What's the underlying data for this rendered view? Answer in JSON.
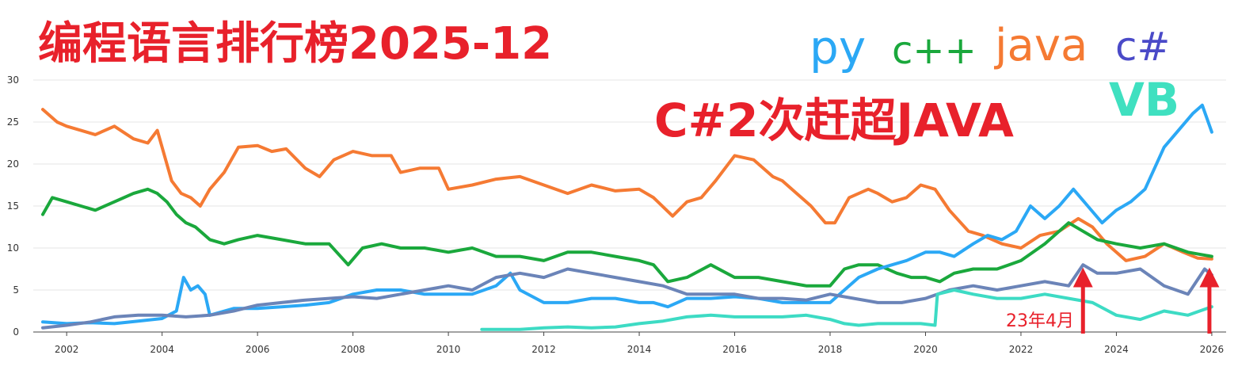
{
  "header": {
    "title": "编程语言排行榜2025-12",
    "headline": "C#2次赶超JAVA",
    "marker_label": "23年4月"
  },
  "legend": [
    {
      "label": "py",
      "color": "#2ba8f5"
    },
    {
      "label": "c++",
      "color": "#1aa83c"
    },
    {
      "label": "java",
      "color": "#f57a33"
    },
    {
      "label": "c#",
      "color": "#4a4ac8"
    },
    {
      "label": "VB",
      "color": "#3fe0c0"
    }
  ],
  "colors": {
    "title": "#e8212b",
    "arrow": "#e8212b",
    "grid": "#e6e6e6",
    "axis": "#444444"
  },
  "chart_data": {
    "type": "line",
    "xlim": [
      2001.3,
      2026.3
    ],
    "ylim": [
      0,
      30
    ],
    "y_ticks": [
      0,
      5,
      10,
      15,
      20,
      25,
      30
    ],
    "x_ticks": [
      2002,
      2004,
      2006,
      2008,
      2010,
      2012,
      2014,
      2016,
      2018,
      2020,
      2022,
      2024,
      2026
    ],
    "grid": true,
    "annotations": [
      {
        "text": "23年4月",
        "x": 2023.3,
        "type": "arrow"
      },
      {
        "text": "",
        "x": 2025.95,
        "type": "arrow"
      }
    ],
    "series": [
      {
        "key": "java",
        "color": "#f57a33",
        "x": [
          2001.5,
          2001.8,
          2002.0,
          2002.3,
          2002.6,
          2003.0,
          2003.4,
          2003.7,
          2003.9,
          2004.2,
          2004.4,
          2004.6,
          2004.8,
          2005.0,
          2005.3,
          2005.6,
          2006.0,
          2006.3,
          2006.6,
          2007.0,
          2007.3,
          2007.6,
          2008.0,
          2008.4,
          2008.8,
          2009.0,
          2009.4,
          2009.8,
          2010.0,
          2010.5,
          2011.0,
          2011.5,
          2012.0,
          2012.5,
          2013.0,
          2013.5,
          2014.0,
          2014.3,
          2014.7,
          2015.0,
          2015.3,
          2015.6,
          2016.0,
          2016.4,
          2016.8,
          2017.0,
          2017.3,
          2017.6,
          2017.9,
          2018.1,
          2018.4,
          2018.8,
          2019.0,
          2019.3,
          2019.6,
          2019.9,
          2020.2,
          2020.5,
          2020.9,
          2021.2,
          2021.6,
          2022.0,
          2022.4,
          2022.8,
          2023.2,
          2023.5,
          2023.8,
          2024.2,
          2024.6,
          2025.0,
          2025.4,
          2025.7,
          2026.0
        ],
        "y": [
          26.5,
          25.0,
          24.5,
          24.0,
          23.5,
          24.5,
          23.0,
          22.5,
          24.0,
          18.0,
          16.5,
          16.0,
          15.0,
          17.0,
          19.0,
          22.0,
          22.2,
          21.5,
          21.8,
          19.5,
          18.5,
          20.5,
          21.5,
          21.0,
          21.0,
          19.0,
          19.5,
          19.5,
          17.0,
          17.5,
          18.2,
          18.5,
          17.5,
          16.5,
          17.5,
          16.8,
          17.0,
          16.0,
          13.8,
          15.5,
          16.0,
          18.0,
          21.0,
          20.5,
          18.5,
          18.0,
          16.5,
          15.0,
          13.0,
          13.0,
          16.0,
          17.0,
          16.5,
          15.5,
          16.0,
          17.5,
          17.0,
          14.5,
          12.0,
          11.5,
          10.5,
          10.0,
          11.5,
          12.0,
          13.5,
          12.5,
          10.5,
          8.5,
          9.0,
          10.5,
          9.5,
          8.8,
          8.7
        ]
      },
      {
        "key": "c++",
        "color": "#1aa83c",
        "x": [
          2001.5,
          2001.7,
          2002.0,
          2002.3,
          2002.6,
          2003.0,
          2003.4,
          2003.7,
          2003.9,
          2004.1,
          2004.3,
          2004.5,
          2004.7,
          2005.0,
          2005.3,
          2005.6,
          2006.0,
          2006.5,
          2007.0,
          2007.5,
          2007.9,
          2008.2,
          2008.6,
          2009.0,
          2009.5,
          2010.0,
          2010.5,
          2011.0,
          2011.5,
          2012.0,
          2012.5,
          2013.0,
          2013.5,
          2014.0,
          2014.3,
          2014.6,
          2015.0,
          2015.5,
          2016.0,
          2016.5,
          2017.0,
          2017.5,
          2018.0,
          2018.3,
          2018.6,
          2019.0,
          2019.4,
          2019.7,
          2020.0,
          2020.3,
          2020.6,
          2021.0,
          2021.5,
          2022.0,
          2022.5,
          2023.0,
          2023.3,
          2023.6,
          2024.0,
          2024.5,
          2025.0,
          2025.5,
          2026.0
        ],
        "y": [
          14.0,
          16.0,
          15.5,
          15.0,
          14.5,
          15.5,
          16.5,
          17.0,
          16.5,
          15.5,
          14.0,
          13.0,
          12.5,
          11.0,
          10.5,
          11.0,
          11.5,
          11.0,
          10.5,
          10.5,
          8.0,
          10.0,
          10.5,
          10.0,
          10.0,
          9.5,
          10.0,
          9.0,
          9.0,
          8.5,
          9.5,
          9.5,
          9.0,
          8.5,
          8.0,
          6.0,
          6.5,
          8.0,
          6.5,
          6.5,
          6.0,
          5.5,
          5.5,
          7.5,
          8.0,
          8.0,
          7.0,
          6.5,
          6.5,
          6.0,
          7.0,
          7.5,
          7.5,
          8.5,
          10.5,
          13.0,
          12.0,
          11.0,
          10.5,
          10.0,
          10.5,
          9.5,
          9.0
        ]
      },
      {
        "key": "py",
        "color": "#2ba8f5",
        "x": [
          2001.5,
          2002.0,
          2002.5,
          2003.0,
          2003.5,
          2004.0,
          2004.3,
          2004.45,
          2004.6,
          2004.75,
          2004.9,
          2005.0,
          2005.5,
          2006.0,
          2006.5,
          2007.0,
          2007.5,
          2008.0,
          2008.5,
          2009.0,
          2009.5,
          2010.0,
          2010.5,
          2011.0,
          2011.3,
          2011.5,
          2012.0,
          2012.5,
          2013.0,
          2013.5,
          2014.0,
          2014.3,
          2014.6,
          2015.0,
          2015.5,
          2016.0,
          2016.5,
          2017.0,
          2017.5,
          2018.0,
          2018.3,
          2018.6,
          2019.0,
          2019.3,
          2019.6,
          2020.0,
          2020.3,
          2020.6,
          2021.0,
          2021.3,
          2021.6,
          2021.9,
          2022.2,
          2022.5,
          2022.8,
          2023.1,
          2023.4,
          2023.7,
          2024.0,
          2024.3,
          2024.6,
          2025.0,
          2025.3,
          2025.6,
          2025.8,
          2026.0
        ],
        "y": [
          1.2,
          1.0,
          1.1,
          1.0,
          1.3,
          1.6,
          2.5,
          6.5,
          5.0,
          5.5,
          4.5,
          2.0,
          2.8,
          2.8,
          3.0,
          3.2,
          3.5,
          4.5,
          5.0,
          5.0,
          4.5,
          4.5,
          4.5,
          5.5,
          7.0,
          5.0,
          3.5,
          3.5,
          4.0,
          4.0,
          3.5,
          3.5,
          3.0,
          4.0,
          4.0,
          4.2,
          4.0,
          3.5,
          3.5,
          3.5,
          5.0,
          6.5,
          7.5,
          8.0,
          8.5,
          9.5,
          9.5,
          9.0,
          10.5,
          11.5,
          11.0,
          12.0,
          15.0,
          13.5,
          15.0,
          17.0,
          15.0,
          13.0,
          14.5,
          15.5,
          17.0,
          22.0,
          24.0,
          26.0,
          27.0,
          23.8
        ]
      },
      {
        "key": "c#",
        "color": "#6b84b8",
        "x": [
          2001.5,
          2002.0,
          2002.5,
          2003.0,
          2003.5,
          2004.0,
          2004.5,
          2005.0,
          2005.5,
          2006.0,
          2006.5,
          2007.0,
          2007.5,
          2008.0,
          2008.5,
          2009.0,
          2009.5,
          2010.0,
          2010.5,
          2011.0,
          2011.5,
          2012.0,
          2012.5,
          2013.0,
          2013.5,
          2014.0,
          2014.5,
          2015.0,
          2015.5,
          2016.0,
          2016.5,
          2017.0,
          2017.5,
          2018.0,
          2018.5,
          2019.0,
          2019.5,
          2020.0,
          2020.5,
          2021.0,
          2021.5,
          2022.0,
          2022.5,
          2023.0,
          2023.3,
          2023.6,
          2024.0,
          2024.5,
          2025.0,
          2025.5,
          2025.85,
          2026.0
        ],
        "y": [
          0.5,
          0.8,
          1.2,
          1.8,
          2.0,
          2.0,
          1.8,
          2.0,
          2.5,
          3.2,
          3.5,
          3.8,
          4.0,
          4.2,
          4.0,
          4.5,
          5.0,
          5.5,
          5.0,
          6.5,
          7.0,
          6.5,
          7.5,
          7.0,
          6.5,
          6.0,
          5.5,
          4.5,
          4.5,
          4.5,
          4.0,
          4.0,
          3.8,
          4.5,
          4.0,
          3.5,
          3.5,
          4.0,
          5.0,
          5.5,
          5.0,
          5.5,
          6.0,
          5.5,
          8.0,
          7.0,
          7.0,
          7.5,
          5.5,
          4.5,
          7.5,
          6.8
        ]
      },
      {
        "key": "VB",
        "color": "#3ddbc4",
        "x": [
          2010.7,
          2011.0,
          2011.5,
          2012.0,
          2012.5,
          2013.0,
          2013.5,
          2014.0,
          2014.5,
          2015.0,
          2015.5,
          2016.0,
          2016.5,
          2017.0,
          2017.5,
          2018.0,
          2018.3,
          2018.6,
          2019.0,
          2019.5,
          2019.9,
          2020.2,
          2020.25,
          2020.6,
          2021.0,
          2021.5,
          2022.0,
          2022.5,
          2023.0,
          2023.5,
          2024.0,
          2024.5,
          2025.0,
          2025.5,
          2026.0
        ],
        "y": [
          0.3,
          0.3,
          0.3,
          0.5,
          0.6,
          0.5,
          0.6,
          1.0,
          1.3,
          1.8,
          2.0,
          1.8,
          1.8,
          1.8,
          2.0,
          1.5,
          1.0,
          0.8,
          1.0,
          1.0,
          1.0,
          0.8,
          4.5,
          5.0,
          4.5,
          4.0,
          4.0,
          4.5,
          4.0,
          3.5,
          2.0,
          1.5,
          2.5,
          2.0,
          3.0
        ]
      }
    ]
  }
}
